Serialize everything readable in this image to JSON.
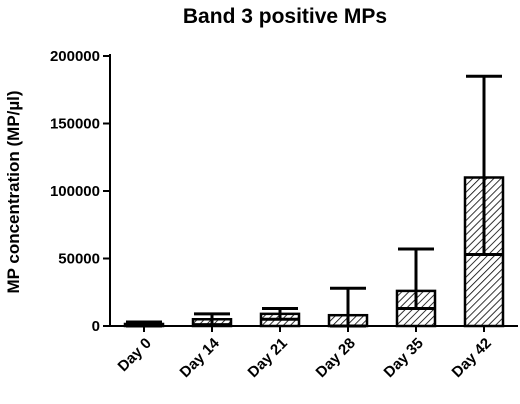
{
  "chart_data": {
    "type": "bar",
    "title": "Band 3 positive MPs",
    "xlabel": "",
    "ylabel": "MP concentration (MP/µl)",
    "categories": [
      "Day 0",
      "Day 14",
      "Day 21",
      "Day 28",
      "Day 35",
      "Day 42"
    ],
    "values": [
      1500,
      5000,
      9000,
      8000,
      26000,
      110000
    ],
    "error_upper": [
      3000,
      9000,
      13000,
      28000,
      57000,
      185000
    ],
    "error_lower": [
      0,
      1000,
      5000,
      0,
      13000,
      53000
    ],
    "ylim": [
      0,
      200000
    ],
    "yticks": [
      "0",
      "50000",
      "100000",
      "150000",
      "200000"
    ],
    "grid": false,
    "bar_fill": "hatched",
    "colors": {
      "bar_stroke": "#000000",
      "hatch": "#000000",
      "background": "#ffffff"
    }
  }
}
